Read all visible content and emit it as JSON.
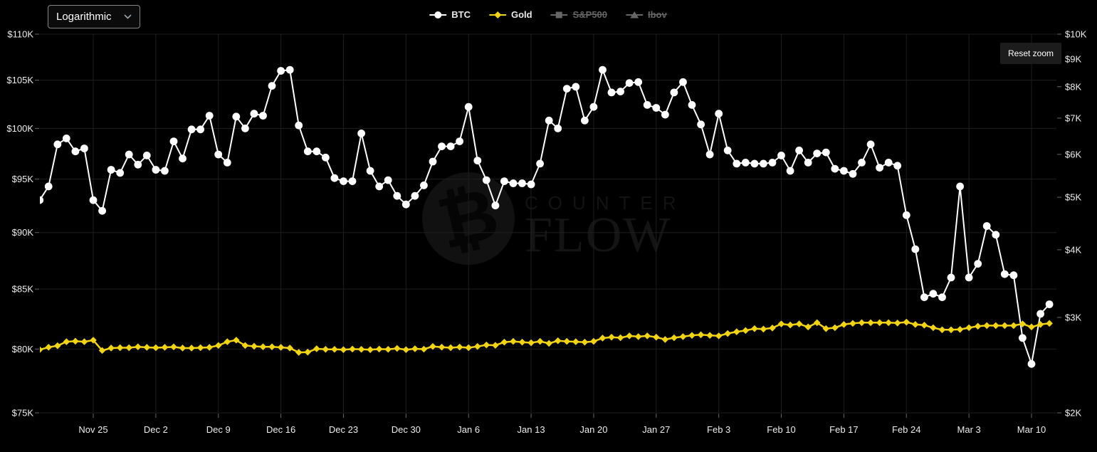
{
  "controls": {
    "scale_select": {
      "value": "Logarithmic"
    },
    "reset_zoom": {
      "label": "Reset zoom"
    }
  },
  "watermark": {
    "symbol": "₿",
    "line1": "COUNTER",
    "line2": "FLOW"
  },
  "legend": {
    "items": [
      {
        "label": "BTC",
        "marker": "circle",
        "color": "#ffffff",
        "enabled": true
      },
      {
        "label": "Gold",
        "marker": "diamond",
        "color": "#f2d411",
        "enabled": true
      },
      {
        "label": "S&P500",
        "marker": "square",
        "color": "#666666",
        "enabled": false
      },
      {
        "label": "Ibov",
        "marker": "triangle",
        "color": "#666666",
        "enabled": false
      }
    ]
  },
  "colors": {
    "background": "#000000",
    "grid": "#1e1e1e",
    "axis_text": "#ececec",
    "tick": "#666666",
    "btc": "#ffffff",
    "gold": "#f2d411",
    "disabled": "#666666"
  },
  "chart_data": {
    "type": "line",
    "x_dates": [
      "Nov 19",
      "Nov 20",
      "Nov 21",
      "Nov 22",
      "Nov 23",
      "Nov 24",
      "Nov 25",
      "Nov 26",
      "Nov 27",
      "Nov 28",
      "Nov 29",
      "Nov 30",
      "Dec 1",
      "Dec 2",
      "Dec 3",
      "Dec 4",
      "Dec 5",
      "Dec 6",
      "Dec 7",
      "Dec 8",
      "Dec 9",
      "Dec 10",
      "Dec 11",
      "Dec 12",
      "Dec 13",
      "Dec 14",
      "Dec 15",
      "Dec 16",
      "Dec 17",
      "Dec 18",
      "Dec 19",
      "Dec 20",
      "Dec 21",
      "Dec 22",
      "Dec 23",
      "Dec 24",
      "Dec 25",
      "Dec 26",
      "Dec 27",
      "Dec 28",
      "Dec 29",
      "Dec 30",
      "Dec 31",
      "Jan 1",
      "Jan 2",
      "Jan 3",
      "Jan 4",
      "Jan 5",
      "Jan 6",
      "Jan 7",
      "Jan 8",
      "Jan 9",
      "Jan 10",
      "Jan 11",
      "Jan 12",
      "Jan 13",
      "Jan 14",
      "Jan 15",
      "Jan 16",
      "Jan 17",
      "Jan 18",
      "Jan 19",
      "Jan 20",
      "Jan 21",
      "Jan 22",
      "Jan 23",
      "Jan 24",
      "Jan 25",
      "Jan 26",
      "Jan 27",
      "Jan 28",
      "Jan 29",
      "Jan 30",
      "Jan 31",
      "Feb 1",
      "Feb 2",
      "Feb 3",
      "Feb 4",
      "Feb 5",
      "Feb 6",
      "Feb 7",
      "Feb 8",
      "Feb 9",
      "Feb 10",
      "Feb 11",
      "Feb 12",
      "Feb 13",
      "Feb 14",
      "Feb 15",
      "Feb 16",
      "Feb 17",
      "Feb 18",
      "Feb 19",
      "Feb 20",
      "Feb 21",
      "Feb 22",
      "Feb 23",
      "Feb 24",
      "Feb 25",
      "Feb 26",
      "Feb 27",
      "Feb 28",
      "Mar 1",
      "Mar 2",
      "Mar 3",
      "Mar 4",
      "Mar 5",
      "Mar 6",
      "Mar 7",
      "Mar 8",
      "Mar 9",
      "Mar 10",
      "Mar 11",
      "Mar 12"
    ],
    "series": [
      {
        "name": "BTC",
        "axis": "left",
        "color": "#ffffff",
        "marker": "circle",
        "values": [
          93000,
          94300,
          98400,
          99000,
          97700,
          98000,
          93000,
          92000,
          95900,
          95600,
          97400,
          96400,
          97300,
          95900,
          95800,
          98700,
          97000,
          99900,
          99900,
          101300,
          97400,
          96600,
          101200,
          100000,
          101500,
          101300,
          104400,
          106000,
          106100,
          100300,
          97700,
          97700,
          97100,
          95100,
          94800,
          94800,
          99500,
          95800,
          94300,
          94900,
          93400,
          92600,
          93400,
          94400,
          96700,
          98200,
          98200,
          98700,
          102200,
          96800,
          94900,
          92500,
          94800,
          94600,
          94600,
          94500,
          96500,
          100800,
          100000,
          104100,
          104300,
          100800,
          102200,
          106100,
          103700,
          103800,
          104700,
          104800,
          102400,
          102100,
          101400,
          103700,
          104800,
          102400,
          100400,
          97400,
          101500,
          97800,
          96500,
          96600,
          96500,
          96500,
          96600,
          97300,
          95800,
          97800,
          96600,
          97500,
          97600,
          96000,
          95800,
          95500,
          96600,
          98400,
          96100,
          96600,
          96300,
          91600,
          88500,
          84300,
          84600,
          84300,
          86000,
          94300,
          86000,
          87200,
          90600,
          89800,
          86300,
          86200,
          80900,
          78800,
          82900,
          83700
        ]
      },
      {
        "name": "Gold",
        "axis": "right",
        "color": "#f2d411",
        "marker": "diamond",
        "values": [
          2616,
          2643,
          2660,
          2706,
          2712,
          2706,
          2724,
          2607,
          2634,
          2638,
          2638,
          2648,
          2642,
          2638,
          2642,
          2647,
          2634,
          2634,
          2638,
          2642,
          2663,
          2706,
          2724,
          2663,
          2654,
          2648,
          2648,
          2642,
          2634,
          2586,
          2589,
          2626,
          2620,
          2620,
          2616,
          2623,
          2620,
          2616,
          2623,
          2620,
          2630,
          2616,
          2626,
          2622,
          2652,
          2644,
          2638,
          2645,
          2638,
          2652,
          2669,
          2665,
          2701,
          2710,
          2701,
          2694,
          2710,
          2687,
          2717,
          2710,
          2706,
          2701,
          2710,
          2748,
          2759,
          2752,
          2774,
          2765,
          2774,
          2759,
          2732,
          2752,
          2765,
          2780,
          2787,
          2780,
          2774,
          2802,
          2823,
          2838,
          2861,
          2855,
          2868,
          2919,
          2905,
          2919,
          2881,
          2934,
          2861,
          2872,
          2912,
          2925,
          2934,
          2934,
          2934,
          2934,
          2930,
          2941,
          2912,
          2903,
          2872,
          2847,
          2847,
          2851,
          2872,
          2890,
          2898,
          2898,
          2898,
          2898,
          2919,
          2881,
          2912,
          2925
        ]
      }
    ],
    "disabled_series": [
      "S&P500",
      "Ibov"
    ],
    "left_axis": {
      "scale": "log",
      "range": [
        75000,
        110000
      ],
      "tick_labels": [
        "$110K",
        "$105K",
        "$100K",
        "$95K",
        "$90K",
        "$85K",
        "$80K",
        "$75K"
      ],
      "tick_values": [
        110000,
        105000,
        100000,
        95000,
        90000,
        85000,
        80000,
        75000
      ]
    },
    "right_axis": {
      "scale": "log",
      "range": [
        2000,
        10000
      ],
      "tick_labels": [
        "$10K",
        "$9K",
        "$8K",
        "$7K",
        "$6K",
        "$5K",
        "$4K",
        "$3K",
        "$2K"
      ],
      "tick_values": [
        10000,
        9000,
        8000,
        7000,
        6000,
        5000,
        4000,
        3000,
        2000
      ]
    },
    "x_axis": {
      "tick_labels": [
        "Nov 25",
        "Dec 2",
        "Dec 9",
        "Dec 16",
        "Dec 23",
        "Dec 30",
        "Jan 6",
        "Jan 13",
        "Jan 20",
        "Jan 27",
        "Feb 3",
        "Feb 10",
        "Feb 17",
        "Feb 24",
        "Mar 3",
        "Mar 10"
      ],
      "tick_day_indices": [
        6,
        13,
        20,
        27,
        34,
        41,
        48,
        55,
        62,
        69,
        76,
        83,
        90,
        97,
        104,
        111
      ]
    },
    "grid": true,
    "legend_position": "top"
  }
}
